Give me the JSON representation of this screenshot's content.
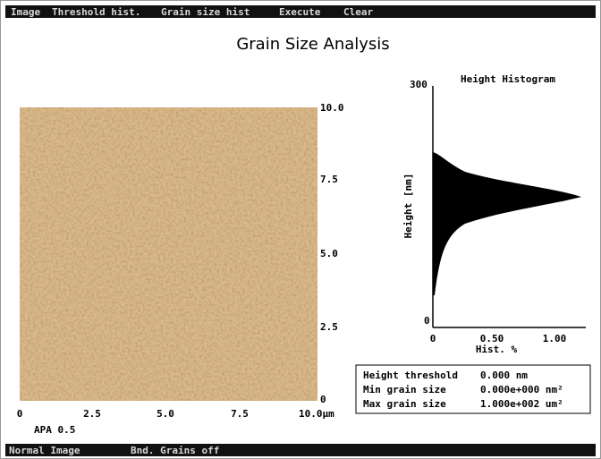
{
  "menu": [
    "Image",
    "Threshold hist.",
    "Grain size hist",
    "Execute",
    "Clear"
  ],
  "title": "Grain Size Analysis",
  "image": {
    "x_ticks": [
      "0",
      "2.5",
      "5.0",
      "7.5",
      "10.0µm"
    ],
    "y_ticks": [
      "0",
      "2.5",
      "5.0",
      "7.5",
      "10.0"
    ],
    "caption": "APA 0.5"
  },
  "histogram": {
    "title": "Height Histogram",
    "y_label": "Height [nm]",
    "y_top": "300",
    "y_bottom": "0",
    "x_ticks": [
      "0",
      "0.50",
      "1.00"
    ],
    "x_label": "Hist. %"
  },
  "info": [
    [
      "Height threshold",
      "0.000 nm"
    ],
    [
      "Min grain size",
      "0.000e+000 nm²"
    ],
    [
      "Max grain size",
      "1.000e+002 um²"
    ]
  ],
  "status": [
    "Normal Image",
    "Bnd. Grains off"
  ]
}
